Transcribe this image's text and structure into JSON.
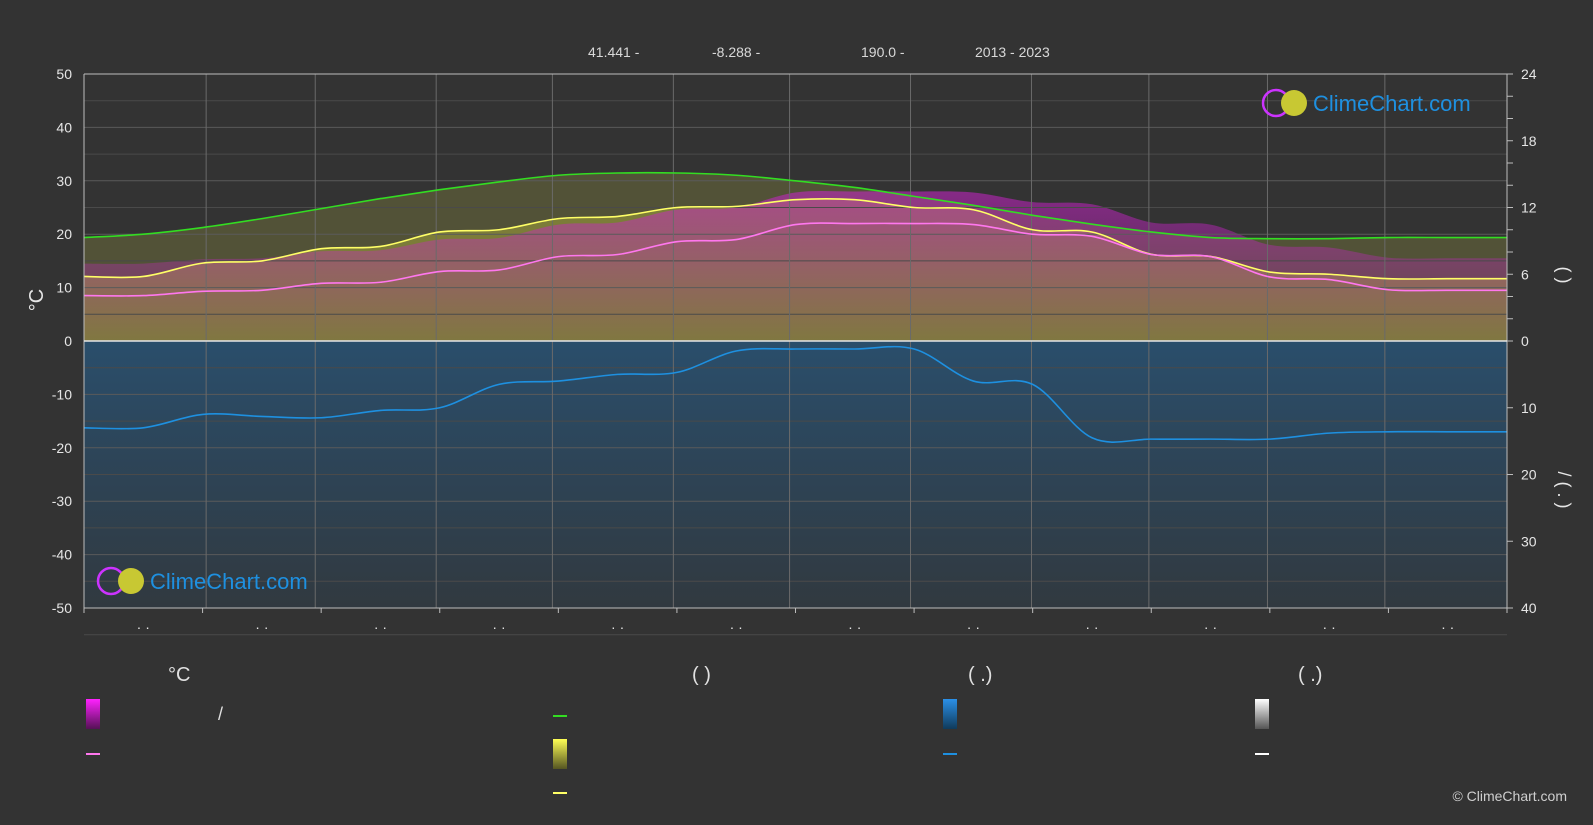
{
  "header": {
    "latitude": "41.441 -",
    "longitude": "-8.288 -",
    "elevation": "190.0 -",
    "years": "2013 - 2023"
  },
  "logo_text": "ClimeChart.com",
  "copyright": "© ClimeChart.com",
  "left_axis_label": "°C",
  "right_axis_top_label": "(   )",
  "right_axis_bottom_label": "/   (   .   )",
  "month_tick_label": "· ·",
  "legend": {
    "col1_title": "°C",
    "col1_item1": "/",
    "col2_title": "(            )",
    "col3_title": "(    .)",
    "col4_title": "(    .)"
  },
  "colors": {
    "background": "#333333",
    "max_temp_line": "#ffff66",
    "mean_temp_line": "#ff77ee",
    "daylight_line": "#33dd22",
    "precip_line": "#1e90e0",
    "temp_fill": "#dd22dd",
    "sun_fill": "#cccc33",
    "precip_fill": "#1f6fb0"
  },
  "chart_data": {
    "type": "line",
    "x": [
      0,
      0.5,
      1,
      1.5,
      2,
      2.5,
      3,
      3.5,
      4,
      4.5,
      5,
      5.5,
      6,
      6.5,
      7,
      7.5,
      8,
      8.5,
      9,
      9.5,
      10,
      10.5,
      11,
      11.5,
      12
    ],
    "left_axis": {
      "unit": "°C",
      "ylim": [
        -50,
        50
      ],
      "ticks": [
        50,
        40,
        30,
        20,
        10,
        0,
        -10,
        -20,
        -30,
        -40,
        -50
      ]
    },
    "right_axis_top": {
      "ylim": [
        0,
        24
      ],
      "ticks": [
        24,
        18,
        12,
        6,
        0
      ]
    },
    "right_axis_bottom": {
      "ylim": [
        0,
        40
      ],
      "ticks": [
        0,
        10,
        20,
        30,
        40
      ]
    },
    "grid": true,
    "series": [
      {
        "key": "daylight",
        "axis": "right_top",
        "color": "#33dd22",
        "values": [
          9.3,
          9.6,
          10.2,
          11.0,
          11.9,
          12.8,
          13.6,
          14.3,
          14.9,
          15.1,
          15.1,
          14.9,
          14.4,
          13.8,
          13.0,
          12.2,
          11.3,
          10.5,
          9.8,
          9.3,
          9.2,
          9.2,
          9.3,
          9.3,
          9.3
        ]
      },
      {
        "key": "sunshine",
        "axis": "right_top",
        "color": "#ffff66",
        "values": [
          5.8,
          5.8,
          7.0,
          7.2,
          8.3,
          8.5,
          9.8,
          10.0,
          11.0,
          11.2,
          12.0,
          12.1,
          12.7,
          12.7,
          12.0,
          11.8,
          10.0,
          9.8,
          7.8,
          7.6,
          6.2,
          6.0,
          5.6,
          5.6,
          5.6
        ]
      },
      {
        "key": "mean_temp",
        "axis": "left",
        "color": "#ff77ee",
        "values": [
          8.5,
          8.5,
          9.3,
          9.5,
          10.8,
          11.0,
          13.0,
          13.3,
          15.8,
          16.2,
          18.6,
          19.0,
          21.8,
          22.0,
          22.0,
          21.8,
          20.0,
          19.6,
          16.2,
          15.8,
          12.0,
          11.5,
          9.6,
          9.5,
          9.5
        ]
      },
      {
        "key": "precip_mean",
        "axis": "right_bottom",
        "color": "#1e90e0",
        "values": [
          13.0,
          13.0,
          11.0,
          11.3,
          11.5,
          10.4,
          10.0,
          6.5,
          6.0,
          5.0,
          4.7,
          1.5,
          1.2,
          1.2,
          1.2,
          6.0,
          6.5,
          14.5,
          14.7,
          14.7,
          14.7,
          13.8,
          13.6,
          13.6,
          13.6
        ]
      }
    ]
  }
}
